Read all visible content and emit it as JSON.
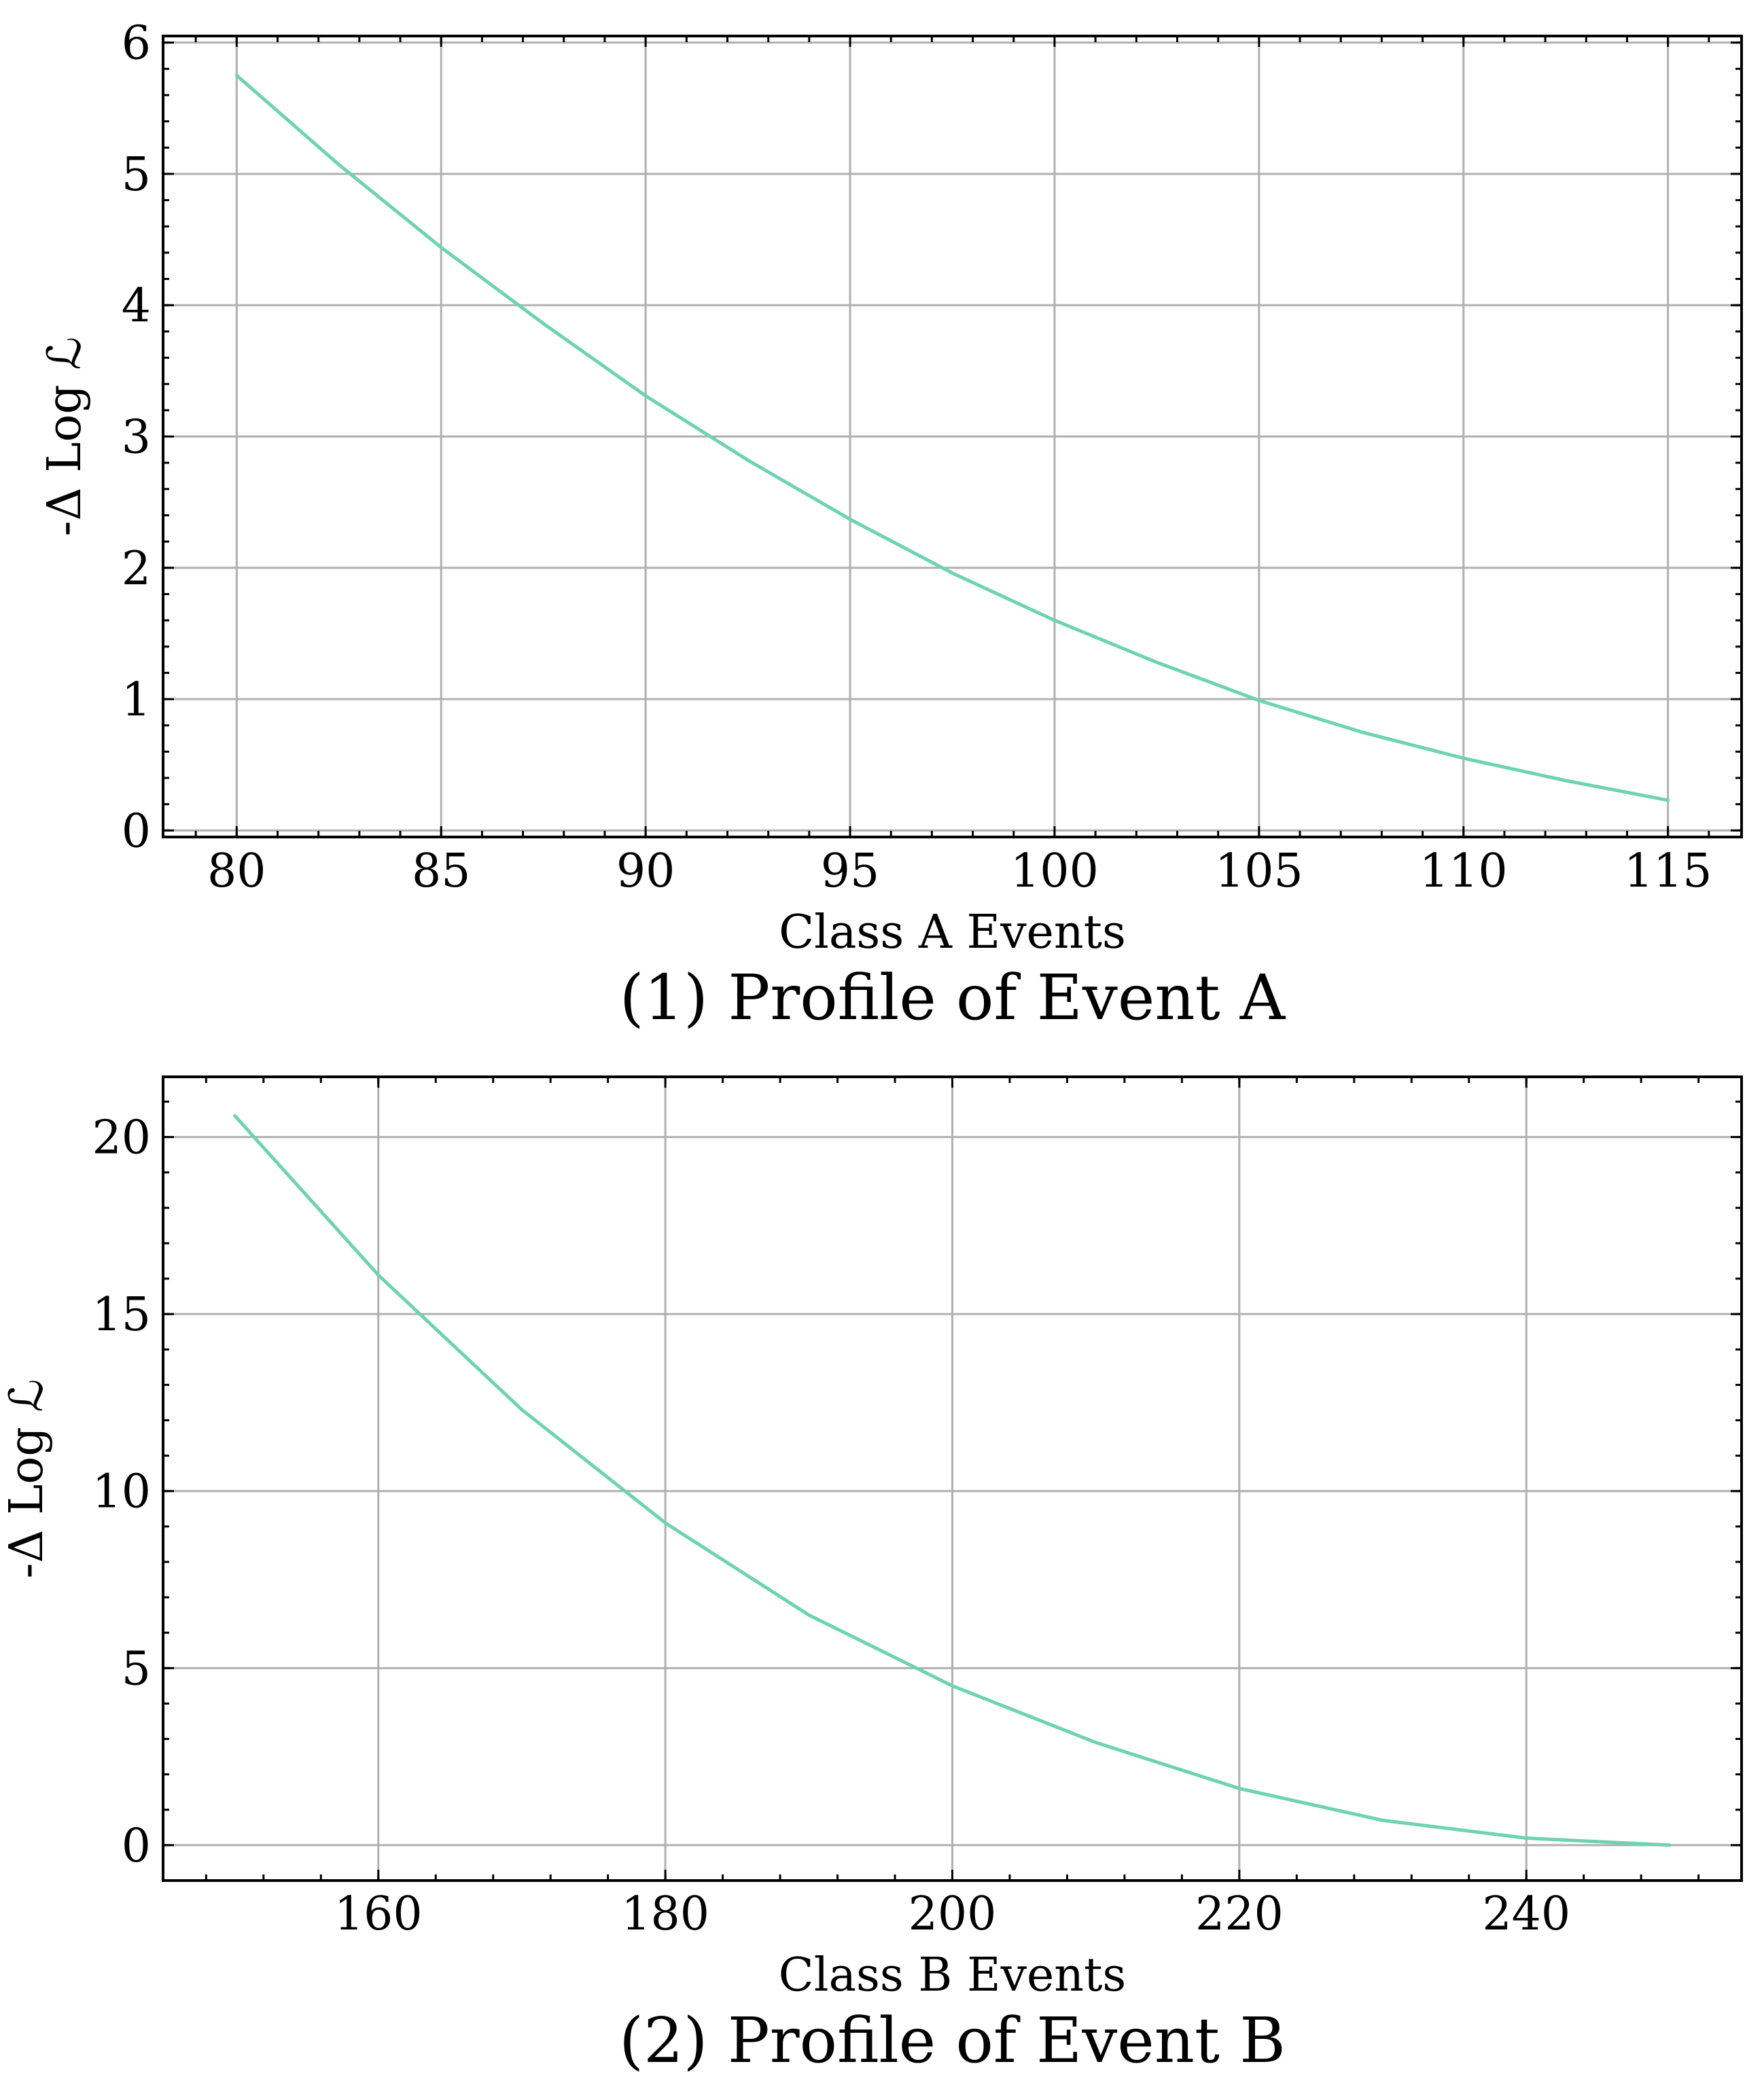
{
  "chart_data": [
    {
      "type": "line",
      "caption": "(1) Profile of Event A",
      "xlabel": "Class A Events",
      "ylabel": "-Δ Log ℒ",
      "xlim": [
        78.2,
        116.8
      ],
      "ylim": [
        -0.05,
        6.05
      ],
      "xticks": [
        80,
        85,
        90,
        95,
        100,
        105,
        110,
        115
      ],
      "yticks": [
        0,
        1,
        2,
        3,
        4,
        5,
        6
      ],
      "grid": true,
      "series_color": "#6dd3b2",
      "x": [
        80,
        82.5,
        85,
        87.5,
        90,
        92.5,
        95,
        97.5,
        100,
        102.5,
        105,
        107.5,
        110,
        112.5,
        115
      ],
      "y": [
        5.75,
        5.07,
        4.44,
        3.86,
        3.31,
        2.82,
        2.37,
        1.96,
        1.6,
        1.28,
        0.99,
        0.75,
        0.55,
        0.38,
        0.23
      ]
    },
    {
      "type": "line",
      "caption": "(2) Profile of Event B",
      "xlabel": "Class B Events",
      "ylabel": "-Δ Log ℒ",
      "xlim": [
        145,
        255
      ],
      "ylim": [
        -1.0,
        21.7
      ],
      "xticks": [
        160,
        180,
        200,
        220,
        240
      ],
      "yticks": [
        0,
        5,
        10,
        15,
        20
      ],
      "grid": true,
      "series_color": "#6dd3b2",
      "x": [
        150,
        160,
        170,
        180,
        190,
        200,
        210,
        220,
        230,
        240,
        250
      ],
      "y": [
        20.6,
        16.1,
        12.3,
        9.1,
        6.5,
        4.5,
        2.9,
        1.6,
        0.7,
        0.2,
        0.0
      ]
    }
  ]
}
